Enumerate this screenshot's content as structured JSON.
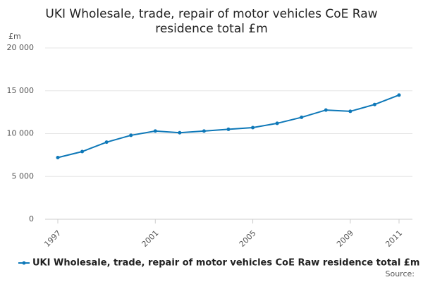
{
  "chart_data": {
    "type": "line",
    "title": "UKI Wholesale, trade, repair of motor vehicles CoE Raw residence total £m",
    "y_unit": "£m",
    "source": "Source:",
    "x": [
      1997,
      1998,
      1999,
      2000,
      2001,
      2002,
      2003,
      2004,
      2005,
      2006,
      2007,
      2008,
      2009,
      2010,
      2011
    ],
    "series": [
      {
        "name": "UKI Wholesale, trade, repair of motor vehicles CoE Raw residence total £m",
        "color": "#0e78b8",
        "values": [
          7200,
          7900,
          9000,
          9800,
          10300,
          10100,
          10300,
          10500,
          10700,
          11200,
          11900,
          12750,
          12600,
          13400,
          14500
        ]
      }
    ],
    "xlim": [
      1997,
      2011
    ],
    "xticks": [
      1997,
      2001,
      2005,
      2009,
      2011
    ],
    "ylim": [
      0,
      20000
    ],
    "yticks": [
      0,
      {
        "value": 5000,
        "label": "5 000"
      },
      {
        "value": 10000,
        "label": "10 000"
      },
      {
        "value": 15000,
        "label": "15 000"
      },
      {
        "value": 20000,
        "label": "20 000"
      }
    ],
    "grid": true
  }
}
